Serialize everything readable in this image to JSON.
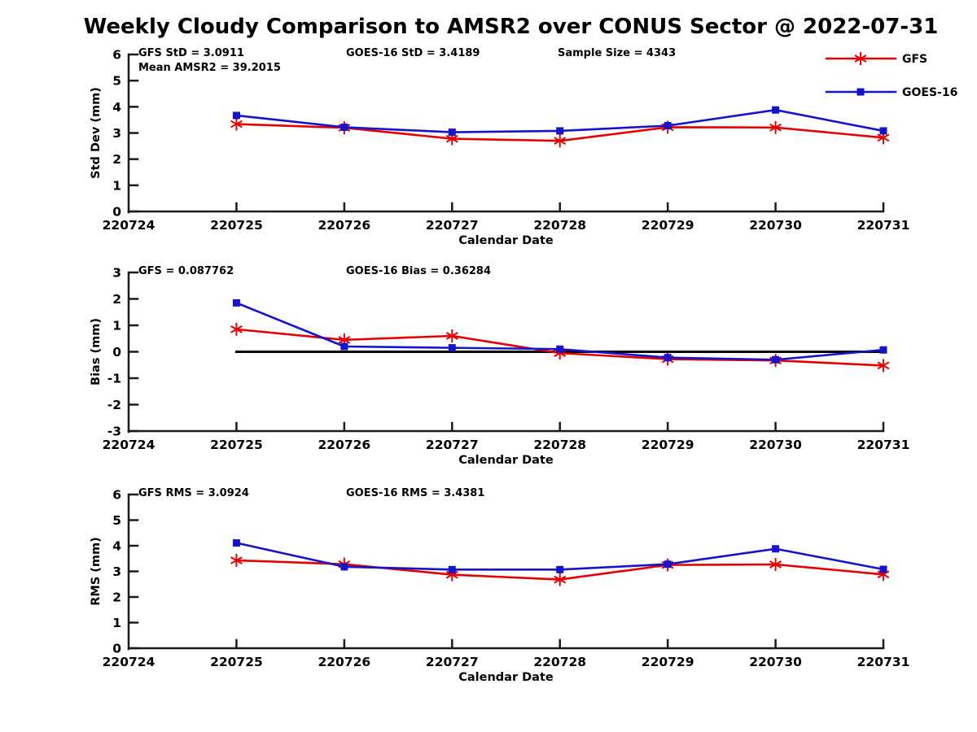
{
  "title": "Weekly Cloudy Comparison to AMSR2 over CONUS Sector @ 2022-07-31",
  "colors": {
    "gfs": "#e60000",
    "goes16": "#1414cc",
    "axis": "#1a1a1a",
    "zero_line": "#000000",
    "text": "#000000",
    "background": "#ffffff"
  },
  "legend": {
    "items": [
      {
        "label": "GFS",
        "marker": "asterisk",
        "color": "#e60000"
      },
      {
        "label": "GOES-16",
        "marker": "square",
        "color": "#1414cc"
      }
    ]
  },
  "chart_data": [
    {
      "type": "line",
      "name": "std_dev",
      "ylabel": "Std Dev (mm)",
      "xlabel": "Calendar Date",
      "ylim": [
        0,
        6
      ],
      "yticks": [
        0,
        1,
        2,
        3,
        4,
        5,
        6
      ],
      "categories": [
        "220724",
        "220725",
        "220726",
        "220727",
        "220728",
        "220729",
        "220730",
        "220731"
      ],
      "grid": false,
      "legend_position": "top-right",
      "zero_line": false,
      "annotations": [
        {
          "text": "GFS StD = 3.0911",
          "slot": 0,
          "line": 0
        },
        {
          "text": "Mean AMSR2 = 39.2015",
          "slot": 0,
          "line": 1
        },
        {
          "text": "GOES-16 StD = 3.4189",
          "slot": 1,
          "line": 0
        },
        {
          "text": "Sample Size = 4343",
          "slot": 2,
          "line": 0
        }
      ],
      "series": [
        {
          "name": "GFS",
          "color": "#e60000",
          "marker": "asterisk",
          "x": [
            "220725",
            "220726",
            "220727",
            "220728",
            "220729",
            "220730",
            "220731"
          ],
          "values": [
            3.34,
            3.2,
            2.78,
            2.7,
            3.22,
            3.21,
            2.82
          ]
        },
        {
          "name": "GOES-16",
          "color": "#1414cc",
          "marker": "square",
          "x": [
            "220725",
            "220726",
            "220727",
            "220728",
            "220729",
            "220730",
            "220731"
          ],
          "values": [
            3.67,
            3.22,
            3.03,
            3.08,
            3.28,
            3.88,
            3.08
          ]
        }
      ]
    },
    {
      "type": "line",
      "name": "bias",
      "ylabel": "Bias (mm)",
      "xlabel": "Calendar Date",
      "ylim": [
        -3,
        3
      ],
      "yticks": [
        -3,
        -2,
        -1,
        0,
        1,
        2,
        3
      ],
      "categories": [
        "220724",
        "220725",
        "220726",
        "220727",
        "220728",
        "220729",
        "220730",
        "220731"
      ],
      "grid": false,
      "zero_line": true,
      "annotations": [
        {
          "text": "GFS = 0.087762",
          "slot": 0,
          "line": 0
        },
        {
          "text": "GOES-16 Bias  = 0.36284",
          "slot": 1,
          "line": 0
        }
      ],
      "series": [
        {
          "name": "GFS",
          "color": "#e60000",
          "marker": "asterisk",
          "x": [
            "220725",
            "220726",
            "220727",
            "220728",
            "220729",
            "220730",
            "220731"
          ],
          "values": [
            0.85,
            0.45,
            0.6,
            -0.05,
            -0.28,
            -0.33,
            -0.52
          ]
        },
        {
          "name": "GOES-16",
          "color": "#1414cc",
          "marker": "square",
          "x": [
            "220725",
            "220726",
            "220727",
            "220728",
            "220729",
            "220730",
            "220731"
          ],
          "values": [
            1.85,
            0.2,
            0.15,
            0.1,
            -0.22,
            -0.3,
            0.07
          ]
        }
      ]
    },
    {
      "type": "line",
      "name": "rms",
      "ylabel": "RMS (mm)",
      "xlabel": "Calendar Date",
      "ylim": [
        0,
        6
      ],
      "yticks": [
        0,
        1,
        2,
        3,
        4,
        5,
        6
      ],
      "categories": [
        "220724",
        "220725",
        "220726",
        "220727",
        "220728",
        "220729",
        "220730",
        "220731"
      ],
      "grid": false,
      "zero_line": false,
      "annotations": [
        {
          "text": "GFS RMS = 3.0924",
          "slot": 0,
          "line": 0
        },
        {
          "text": "GOES-16 RMS = 3.4381",
          "slot": 1,
          "line": 0
        }
      ],
      "series": [
        {
          "name": "GFS",
          "color": "#e60000",
          "marker": "asterisk",
          "x": [
            "220725",
            "220726",
            "220727",
            "220728",
            "220729",
            "220730",
            "220731"
          ],
          "values": [
            3.43,
            3.28,
            2.87,
            2.68,
            3.25,
            3.27,
            2.88
          ]
        },
        {
          "name": "GOES-16",
          "color": "#1414cc",
          "marker": "square",
          "x": [
            "220725",
            "220726",
            "220727",
            "220728",
            "220729",
            "220730",
            "220731"
          ],
          "values": [
            4.11,
            3.18,
            3.07,
            3.07,
            3.28,
            3.88,
            3.08
          ]
        }
      ]
    }
  ]
}
